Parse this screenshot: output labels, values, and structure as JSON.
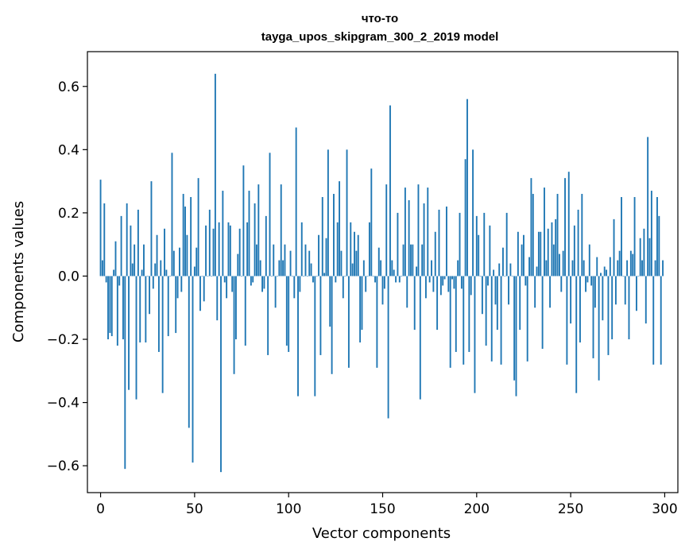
{
  "chart_data": {
    "type": "bar",
    "title": "что-то",
    "subtitle": "tayga_upos_skipgram_300_2_2019 model",
    "xlabel": "Vector components",
    "ylabel": "Components values",
    "xlim": [
      -7,
      307
    ],
    "ylim": [
      -0.685,
      0.71
    ],
    "xticks": [
      0,
      50,
      100,
      150,
      200,
      250,
      300
    ],
    "xtick_labels": [
      "0",
      "50",
      "100",
      "150",
      "200",
      "250",
      "300"
    ],
    "yticks": [
      -0.6,
      -0.4,
      -0.2,
      0.0,
      0.2,
      0.4,
      0.6
    ],
    "ytick_labels": [
      "−0.6",
      "−0.4",
      "−0.2",
      "0.0",
      "0.2",
      "0.4",
      "0.6"
    ],
    "series_color": "#1f77b4",
    "x": "indices 0..299",
    "values": [
      0.305,
      0.05,
      0.23,
      -0.02,
      -0.2,
      -0.18,
      -0.19,
      0.02,
      0.11,
      -0.22,
      -0.03,
      0.19,
      -0.2,
      -0.61,
      0.23,
      -0.36,
      0.16,
      0.04,
      0.1,
      -0.39,
      0.21,
      -0.21,
      0.02,
      0.1,
      -0.21,
      0.0,
      -0.12,
      0.3,
      -0.04,
      0.04,
      0.13,
      -0.24,
      0.05,
      -0.37,
      0.15,
      0.02,
      -0.19,
      0.0,
      0.39,
      0.08,
      -0.18,
      -0.07,
      0.09,
      -0.05,
      0.26,
      0.22,
      0.13,
      -0.48,
      0.25,
      -0.59,
      0.03,
      0.09,
      0.31,
      -0.11,
      0.0,
      -0.08,
      0.16,
      0.0,
      0.21,
      0.0,
      0.15,
      0.64,
      -0.14,
      0.17,
      -0.62,
      0.27,
      -0.02,
      -0.07,
      0.17,
      0.16,
      -0.05,
      -0.31,
      -0.2,
      0.07,
      0.15,
      0.0,
      0.35,
      -0.22,
      0.17,
      0.27,
      -0.03,
      -0.02,
      0.23,
      0.1,
      0.29,
      0.05,
      -0.05,
      -0.04,
      0.19,
      -0.25,
      0.39,
      0.0,
      0.1,
      -0.1,
      0.0,
      0.05,
      0.29,
      0.05,
      0.1,
      -0.22,
      -0.24,
      0.08,
      0.0,
      -0.07,
      0.47,
      -0.38,
      -0.05,
      0.17,
      0.0,
      0.1,
      0.0,
      0.08,
      0.04,
      -0.02,
      -0.38,
      0.0,
      0.13,
      -0.25,
      0.25,
      0.01,
      0.12,
      0.4,
      -0.16,
      -0.31,
      0.26,
      -0.02,
      0.17,
      0.3,
      0.08,
      -0.07,
      0.0,
      0.4,
      -0.29,
      0.17,
      0.04,
      0.14,
      0.08,
      0.13,
      -0.21,
      -0.17,
      0.05,
      -0.05,
      0.0,
      0.17,
      0.34,
      0.0,
      -0.02,
      -0.29,
      0.09,
      0.05,
      -0.09,
      -0.04,
      0.29,
      -0.45,
      0.54,
      0.05,
      0.02,
      -0.02,
      0.2,
      -0.02,
      0.0,
      0.1,
      0.28,
      -0.1,
      0.24,
      0.1,
      0.1,
      -0.17,
      0.03,
      0.29,
      -0.39,
      0.1,
      0.23,
      -0.07,
      0.28,
      -0.02,
      0.05,
      -0.05,
      0.14,
      -0.17,
      0.21,
      -0.06,
      -0.03,
      -0.01,
      0.22,
      -0.05,
      -0.29,
      -0.01,
      -0.04,
      -0.24,
      0.05,
      0.2,
      -0.04,
      -0.28,
      0.37,
      0.56,
      -0.24,
      -0.06,
      0.4,
      -0.37,
      0.19,
      0.13,
      0.0,
      -0.12,
      0.2,
      -0.22,
      -0.03,
      0.16,
      -0.27,
      0.02,
      -0.09,
      -0.17,
      0.04,
      -0.28,
      0.09,
      0.0,
      0.2,
      -0.09,
      0.04,
      0.0,
      -0.33,
      -0.38,
      0.14,
      -0.17,
      0.1,
      0.13,
      -0.03,
      -0.27,
      0.06,
      0.31,
      0.26,
      -0.1,
      0.03,
      0.14,
      0.14,
      -0.23,
      0.28,
      0.05,
      0.15,
      -0.1,
      0.17,
      0.1,
      0.18,
      0.26,
      0.07,
      -0.05,
      0.08,
      0.31,
      -0.28,
      0.33,
      -0.15,
      0.05,
      0.16,
      -0.37,
      0.21,
      -0.21,
      0.26,
      0.05,
      -0.05,
      -0.02,
      0.1,
      -0.03,
      -0.26,
      -0.1,
      0.06,
      -0.33,
      0.01,
      -0.14,
      0.03,
      0.02,
      -0.25,
      0.06,
      -0.2,
      0.18,
      -0.09,
      0.05,
      0.08,
      0.25,
      0.0,
      -0.09,
      0.05,
      -0.2,
      0.08,
      0.07,
      0.25,
      -0.11,
      0.0,
      0.12,
      0.05,
      0.15,
      -0.15,
      0.44,
      0.12,
      0.27,
      -0.28,
      0.05,
      0.25,
      0.19,
      -0.28,
      0.05
    ]
  }
}
